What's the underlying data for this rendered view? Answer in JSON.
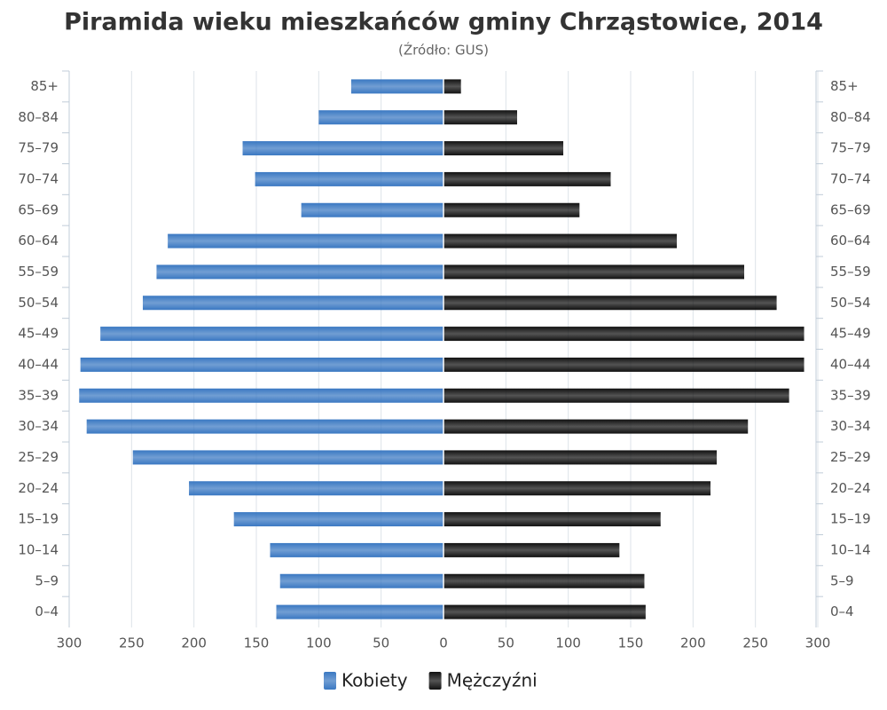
{
  "chart_data": {
    "type": "pyramid",
    "title": "Piramida wieku mieszkańców gminy Chrząstowice, 2014",
    "subtitle": "(Źródło: GUS)",
    "categories": [
      "85+",
      "80–84",
      "75–79",
      "70–74",
      "65–69",
      "60–64",
      "55–59",
      "50–54",
      "45–49",
      "40–44",
      "35–39",
      "30–34",
      "25–29",
      "20–24",
      "15–19",
      "10–14",
      "5–9",
      "0–4"
    ],
    "series": [
      {
        "name": "Kobiety",
        "color": "#3a78c2",
        "side": "left",
        "values": [
          74,
          100,
          161,
          151,
          114,
          221,
          230,
          241,
          275,
          291,
          292,
          286,
          249,
          204,
          168,
          139,
          131,
          134
        ]
      },
      {
        "name": "Mężczyźni",
        "color": "#111111",
        "side": "right",
        "values": [
          14,
          59,
          96,
          134,
          109,
          187,
          241,
          267,
          289,
          289,
          277,
          244,
          219,
          214,
          174,
          141,
          161,
          162
        ]
      }
    ],
    "xlim": [
      0,
      300
    ],
    "xticks": [
      0,
      50,
      100,
      150,
      200,
      250,
      300
    ],
    "grid": true
  }
}
